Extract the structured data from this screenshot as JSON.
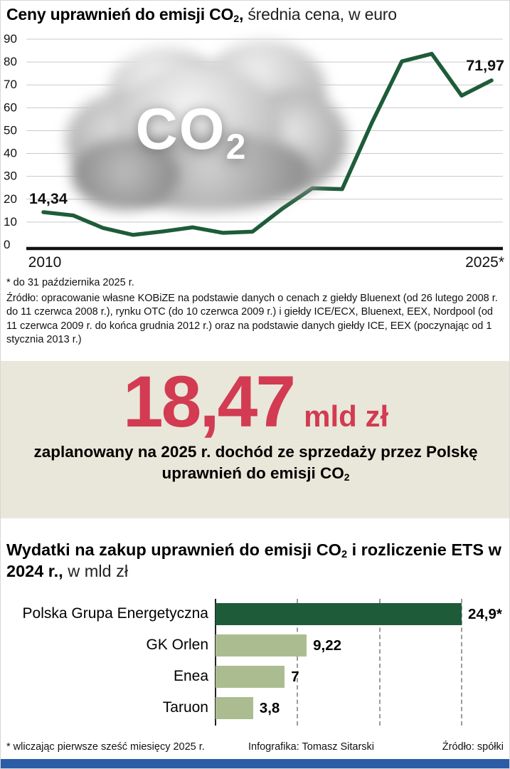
{
  "header": {
    "title_bold_pre": "Ceny uprawnień do emisji CO",
    "title_sub": "2",
    "title_bold_post": ",",
    "title_regular": " średnia cena, w euro"
  },
  "cloud": {
    "co_text": "CO",
    "sub": "2"
  },
  "chart_data": [
    {
      "type": "line",
      "title": "Ceny uprawnień do emisji CO2, średnia cena, w euro",
      "x": [
        2010,
        2011,
        2012,
        2013,
        2014,
        2015,
        2016,
        2017,
        2018,
        2019,
        2020,
        2021,
        2022,
        2023,
        2024,
        2025
      ],
      "values": [
        14.34,
        12.9,
        7.4,
        4.4,
        5.9,
        7.7,
        5.3,
        5.8,
        15.9,
        24.8,
        24.4,
        53.6,
        80.3,
        83.6,
        65.3,
        71.97
      ],
      "ylim": [
        0,
        90
      ],
      "yticks": [
        0,
        10,
        20,
        30,
        40,
        50,
        60,
        70,
        80,
        90
      ],
      "x_axis_labels": [
        "2010",
        "2025*"
      ],
      "annotations": [
        {
          "text": "14,34",
          "year": 2010,
          "anchor": "start"
        },
        {
          "text": "71,97",
          "year": 2025,
          "anchor": "end"
        }
      ],
      "line_color": "#1e5c39",
      "grid": true,
      "legend": "none"
    },
    {
      "type": "bar",
      "orientation": "horizontal",
      "title": "Wydatki na zakup uprawnień do emisji CO2 i rozliczenie ETS w 2024 r., w mld zł",
      "categories": [
        "Polska Grupa Energetyczna",
        "GK Orlen",
        "Enea",
        "Taruon"
      ],
      "values": [
        24.9,
        9.22,
        7,
        3.8
      ],
      "value_labels": [
        "24,9*",
        "9,22",
        "7",
        "3,8"
      ],
      "xlim": [
        0,
        24.9
      ],
      "bar_colors": [
        "#1e5c39",
        "#abbd90",
        "#abbd90",
        "#abbd90"
      ],
      "gridlines": "dashed-vertical",
      "legend": "none"
    }
  ],
  "line_section": {
    "footnote": "* do 31 października 2025 r.",
    "source": "Źródło: opracowanie własne KOBiZE na podstawie danych o cenach z giełdy Bluenext (od 26 lutego 2008 r. do 11 czerwca 2008 r.), rynku OTC (do 10 czerwca 2009 r.) i giełdy ICE/ECX, Bluenext, EEX, Nordpool (od 11 czerwca 2009 r. do końca grudnia 2012 r.) oraz na podstawie danych giełdy ICE, EEX (poczynając od 1 stycznia 2013 r.)"
  },
  "highlight": {
    "number": "18,47",
    "unit": "mld zł",
    "desc_pre": "zaplanowany na 2025 r. dochód ze sprzedaży przez Polskę uprawnień do emisji CO",
    "desc_sub": "2",
    "accent_color": "#d23b52",
    "bg_color": "#e9e7d9"
  },
  "bar_section": {
    "title_bold_pre": "Wydatki na zakup uprawnień do emisji CO",
    "title_sub": "2",
    "title_bold_post": " i rozliczenie ETS w 2024 r.,",
    "title_regular": " w mld zł"
  },
  "footer": {
    "footnote": "* wliczając pierwsze sześć miesięcy 2025 r.",
    "credit": "Infografika: Tomasz Sitarski",
    "source": "Źródło: spółki",
    "bar_color": "#2b5ca6"
  }
}
